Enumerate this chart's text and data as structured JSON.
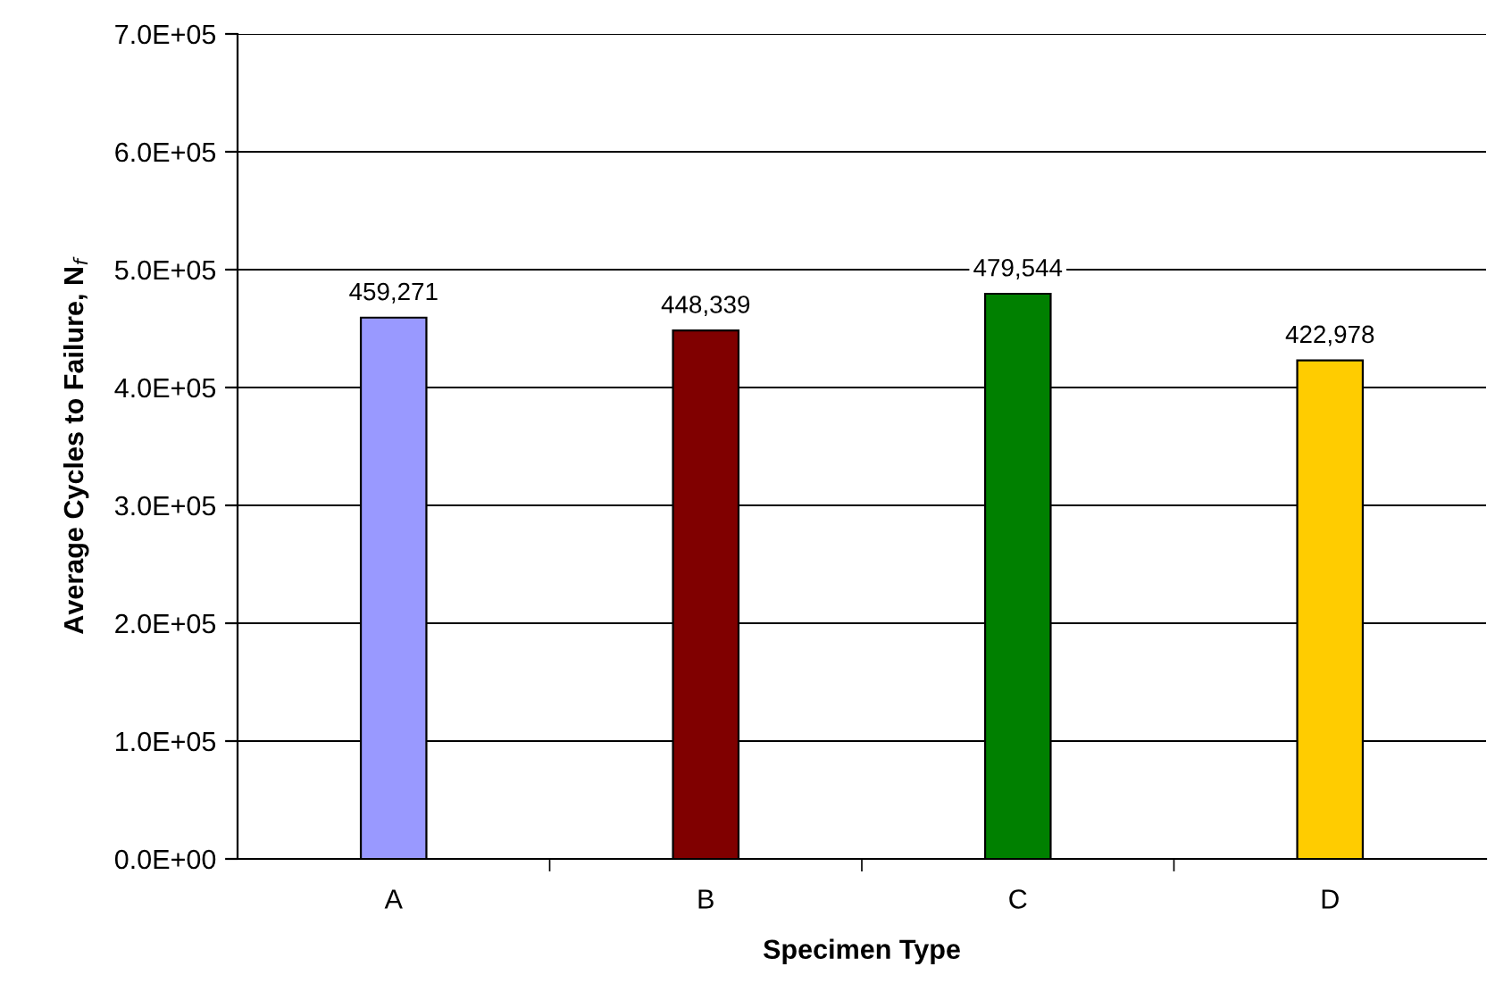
{
  "chart_data": {
    "type": "bar",
    "xlabel": "Specimen Type",
    "ylabel": "Average Cycles to Failure, N$_{f}$",
    "categories": [
      "A",
      "B",
      "C",
      "D"
    ],
    "values": [
      459271,
      448339,
      479544,
      422978
    ],
    "colors": [
      "#9999ff",
      "#800000",
      "#008000",
      "#ffcc00"
    ],
    "value_labels": [
      "459,271",
      "448,339",
      "479,544",
      "422,978"
    ],
    "ylim": [
      0,
      700000
    ],
    "yticks": [
      {
        "value": 0,
        "label": "0.0E+00"
      },
      {
        "value": 100000,
        "label": "1.0E+05"
      },
      {
        "value": 200000,
        "label": "2.0E+05"
      },
      {
        "value": 300000,
        "label": "3.0E+05"
      },
      {
        "value": 400000,
        "label": "4.0E+05"
      },
      {
        "value": 500000,
        "label": "5.0E+05"
      },
      {
        "value": 600000,
        "label": "6.0E+05"
      },
      {
        "value": 700000,
        "label": "7.0E+05"
      }
    ],
    "grid": "y",
    "legend": false
  }
}
